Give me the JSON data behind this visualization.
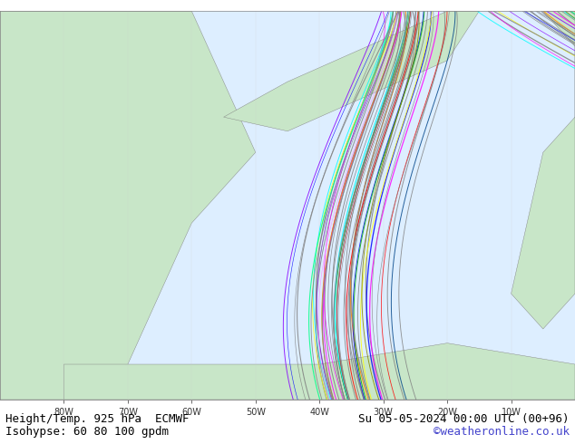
{
  "title_left": "Height/Temp. 925 hPa  ECMWF",
  "title_right": "Su 05-05-2024 00:00 UTC (00+96)",
  "subtitle": "Isohypse: 60 80 100 gpdm",
  "credit": "©weatheronline.co.uk",
  "bg_color": "#e8f4e8",
  "land_color": "#c8e6c8",
  "sea_color": "#ddeeff",
  "border_color": "#aaaaaa",
  "axis_label_color": "#333333",
  "title_fontsize": 9,
  "subtitle_fontsize": 9,
  "credit_color": "#4444cc",
  "credit_fontsize": 9,
  "fig_width": 6.34,
  "fig_height": 4.9,
  "dpi": 100,
  "bottom_bar_height": 0.1,
  "x_tick_labels": [
    "80W",
    "70W",
    "60W",
    "50W",
    "40W",
    "30W",
    "20W",
    "10W"
  ],
  "map_bg": "#ddeeff"
}
